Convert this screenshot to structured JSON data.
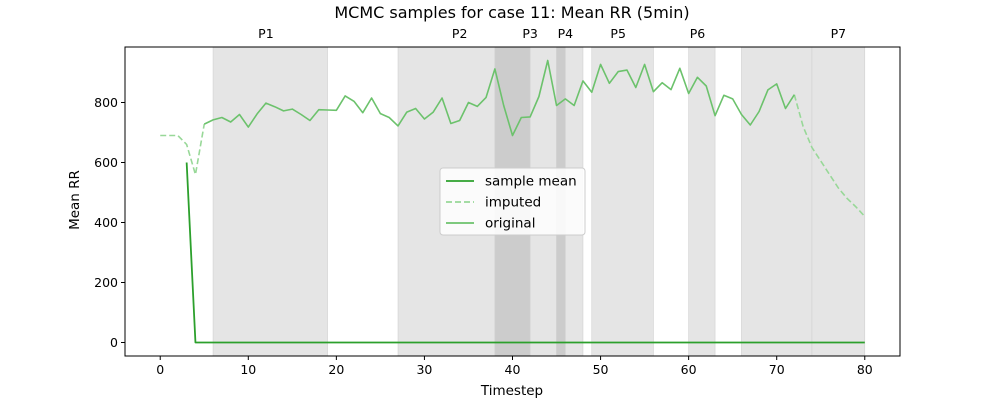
{
  "chart_data": {
    "type": "line",
    "title": "MCMC samples for case 11: Mean RR (5min)",
    "xlabel": "Timestep",
    "ylabel": "Mean RR",
    "xlim": [
      -4,
      84
    ],
    "ylim": [
      -45,
      985
    ],
    "xticks": [
      0,
      10,
      20,
      30,
      40,
      50,
      60,
      70,
      80
    ],
    "yticks": [
      0,
      200,
      400,
      600,
      800
    ],
    "grid": false,
    "legend_position": "center",
    "regions": [
      {
        "label": "P1",
        "start": 6,
        "end": 19,
        "color": "#e5e5e5"
      },
      {
        "label": "P2",
        "start": 27,
        "end": 38,
        "color": "#e5e5e5"
      },
      {
        "label": "P3",
        "start": 38,
        "end": 42,
        "color": "#cccccc"
      },
      {
        "label": "",
        "start": 42,
        "end": 45,
        "color": "#e5e5e5"
      },
      {
        "label": "P4",
        "start": 45,
        "end": 46,
        "color": "#cccccc"
      },
      {
        "label": "",
        "start": 46,
        "end": 48,
        "color": "#e5e5e5"
      },
      {
        "label": "P5",
        "start": 49,
        "end": 56,
        "color": "#e5e5e5"
      },
      {
        "label": "P6",
        "start": 60,
        "end": 63,
        "color": "#e5e5e5"
      },
      {
        "label": "",
        "start": 66,
        "end": 74,
        "color": "#e5e5e5"
      },
      {
        "label": "P7",
        "start": 74,
        "end": 80,
        "color": "#e5e5e5"
      }
    ],
    "top_labels": [
      {
        "label": "P1",
        "x": 12
      },
      {
        "label": "P2",
        "x": 34
      },
      {
        "label": "P3",
        "x": 42
      },
      {
        "label": "P4",
        "x": 46
      },
      {
        "label": "P5",
        "x": 52
      },
      {
        "label": "P6",
        "x": 61
      },
      {
        "label": "P7",
        "x": 77
      }
    ],
    "series": [
      {
        "name": "sample mean",
        "style": "solid",
        "color": "#2ca02c",
        "x": [
          3,
          4,
          80
        ],
        "y": [
          600,
          0,
          0
        ]
      },
      {
        "name": "imputed",
        "style": "dashed",
        "color": "#98d898",
        "segments": [
          {
            "x": [
              0,
              1,
              2,
              3,
              4,
              5
            ],
            "y": [
              690,
              690,
              690,
              660,
              560,
              728
            ]
          },
          {
            "x": [
              72,
              73,
              74,
              75,
              76,
              77,
              78,
              79,
              80
            ],
            "y": [
              826,
              720,
              650,
              605,
              560,
              515,
              480,
              452,
              420
            ]
          }
        ]
      },
      {
        "name": "original",
        "style": "solid",
        "color": "#6cc26c",
        "x": [
          5,
          6,
          7,
          8,
          9,
          10,
          11,
          12,
          13,
          14,
          15,
          16,
          17,
          18,
          19,
          20,
          21,
          22,
          23,
          24,
          25,
          26,
          27,
          28,
          29,
          30,
          31,
          32,
          33,
          34,
          35,
          36,
          37,
          38,
          39,
          40,
          41,
          42,
          43,
          44,
          45,
          46,
          47,
          48,
          49,
          50,
          51,
          52,
          53,
          54,
          55,
          56,
          57,
          58,
          59,
          60,
          61,
          62,
          63,
          64,
          65,
          66,
          67,
          68,
          69,
          70,
          71,
          72
        ],
        "y": [
          728,
          742,
          750,
          735,
          760,
          718,
          762,
          798,
          786,
          772,
          778,
          760,
          740,
          776,
          775,
          774,
          822,
          804,
          766,
          815,
          763,
          750,
          722,
          768,
          780,
          745,
          768,
          815,
          730,
          740,
          800,
          787,
          817,
          912,
          790,
          690,
          750,
          752,
          820,
          940,
          790,
          812,
          790,
          872,
          834,
          927,
          864,
          903,
          908,
          850,
          927,
          836,
          866,
          843,
          914,
          830,
          884,
          855,
          756,
          824,
          812,
          760,
          725,
          770,
          842,
          862,
          780,
          826
        ]
      }
    ]
  }
}
